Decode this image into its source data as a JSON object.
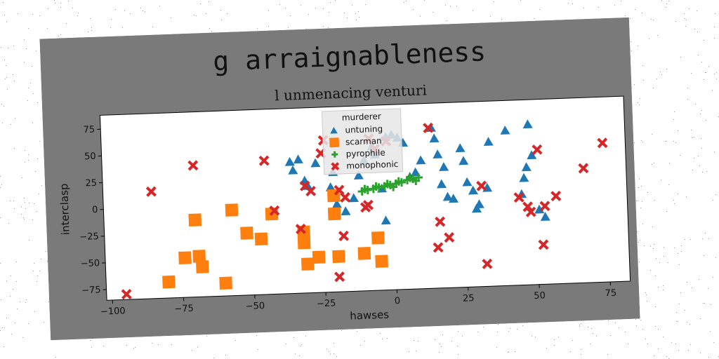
{
  "chart_data": {
    "type": "scatter",
    "title": "g arraignableness",
    "subtitle": "l unmenacing venturi",
    "xlabel": "hawses",
    "ylabel": "interclasp",
    "xlim": [
      -102,
      82
    ],
    "ylim": [
      -85,
      88
    ],
    "xticks": [
      -100,
      -75,
      -50,
      -25,
      0,
      25,
      50,
      75
    ],
    "xtick_labels": [
      "−100",
      "−75",
      "−50",
      "−25",
      "0",
      "25",
      "50",
      "75"
    ],
    "yticks": [
      -75,
      -50,
      -25,
      0,
      25,
      50,
      75
    ],
    "ytick_labels": [
      "−75",
      "−50",
      "−25",
      "0",
      "25",
      "50",
      "75"
    ],
    "grid": false,
    "legend": {
      "title": "murderer",
      "placement": "top-center"
    },
    "series": [
      {
        "name": "untuning",
        "marker": "triangle",
        "color": "#1f77b4",
        "points": [
          [
            -36,
            38
          ],
          [
            -33,
            40
          ],
          [
            -35,
            30
          ],
          [
            -31,
            20
          ],
          [
            -30,
            15
          ],
          [
            -27,
            36
          ],
          [
            -22,
            13
          ],
          [
            -21,
            27
          ],
          [
            -20,
            -3
          ],
          [
            -17,
            -10
          ],
          [
            -14,
            2
          ],
          [
            -12,
            23
          ],
          [
            -10,
            37
          ],
          [
            -7,
            50
          ],
          [
            -6,
            42
          ],
          [
            -4,
            10
          ],
          [
            -3,
            -20
          ],
          [
            -2,
            58
          ],
          [
            0,
            60
          ],
          [
            2,
            57
          ],
          [
            4,
            52
          ],
          [
            6,
            20
          ],
          [
            8,
            24
          ],
          [
            10,
            35
          ],
          [
            14,
            65
          ],
          [
            15,
            55
          ],
          [
            16,
            40
          ],
          [
            17,
            12
          ],
          [
            18,
            28
          ],
          [
            19,
            0
          ],
          [
            21,
            -2
          ],
          [
            24,
            45
          ],
          [
            25,
            33
          ],
          [
            26,
            13
          ],
          [
            28,
            5
          ],
          [
            29,
            -12
          ],
          [
            30,
            -8
          ],
          [
            33,
            7
          ],
          [
            34,
            50
          ],
          [
            40,
            60
          ],
          [
            45,
            0
          ],
          [
            46,
            15
          ],
          [
            47,
            25
          ],
          [
            48,
            65
          ],
          [
            49,
            36
          ],
          [
            51,
            -15
          ],
          [
            53,
            -22
          ]
        ]
      },
      {
        "name": "scarman",
        "marker": "square",
        "color": "#ff7f0e",
        "points": [
          [
            -80,
            -70
          ],
          [
            -74,
            -48
          ],
          [
            -69,
            -47
          ],
          [
            -70,
            -13
          ],
          [
            -68,
            -57
          ],
          [
            -60,
            -73
          ],
          [
            -57,
            -5
          ],
          [
            -52,
            -27
          ],
          [
            -47,
            -33
          ],
          [
            -43,
            -10
          ],
          [
            -32,
            -28
          ],
          [
            -32,
            -38
          ],
          [
            -31,
            -58
          ],
          [
            -27,
            -52
          ],
          [
            -21,
            5
          ],
          [
            -21,
            -12
          ],
          [
            -20,
            -52
          ],
          [
            -11,
            -50
          ],
          [
            -6,
            -36
          ],
          [
            -5,
            -58
          ]
        ]
      },
      {
        "name": "pyrophile",
        "marker": "plus",
        "color": "#2ca02c",
        "points": [
          [
            -11,
            8
          ],
          [
            -9,
            9
          ],
          [
            -7,
            10
          ],
          [
            -5,
            11
          ],
          [
            -3,
            12
          ],
          [
            -1,
            13
          ],
          [
            1,
            14
          ],
          [
            3,
            15
          ],
          [
            5,
            17
          ],
          [
            7,
            18
          ],
          [
            9,
            19
          ],
          [
            -10,
            10
          ],
          [
            -6,
            12
          ],
          [
            -2,
            14
          ],
          [
            2,
            16
          ],
          [
            6,
            19
          ],
          [
            8,
            16
          ],
          [
            0,
            11
          ]
        ]
      },
      {
        "name": "monophonic",
        "marker": "x",
        "color": "#d62728",
        "points": [
          [
            -95,
            -80
          ],
          [
            -85,
            15
          ],
          [
            -70,
            38
          ],
          [
            -45,
            40
          ],
          [
            -42,
            -7
          ],
          [
            -33,
            -25
          ],
          [
            -31,
            15
          ],
          [
            -29,
            10
          ],
          [
            -25,
            45
          ],
          [
            -24,
            57
          ],
          [
            -20,
            -71
          ],
          [
            -19,
            10
          ],
          [
            -18,
            -33
          ],
          [
            -17,
            3
          ],
          [
            -10,
            -7
          ],
          [
            -9,
            -5
          ],
          [
            -8,
            57
          ],
          [
            -6,
            47
          ],
          [
            -2,
            54
          ],
          [
            13,
            65
          ],
          [
            15,
            -47
          ],
          [
            16,
            -23
          ],
          [
            19,
            -38
          ],
          [
            31,
            9
          ],
          [
            32,
            -64
          ],
          [
            44,
            -3
          ],
          [
            47,
            -12
          ],
          [
            48,
            -17
          ],
          [
            51,
            41
          ],
          [
            52,
            -48
          ],
          [
            53,
            -12
          ],
          [
            57,
            -3
          ],
          [
            67,
            22
          ],
          [
            74,
            45
          ]
        ]
      }
    ]
  },
  "colors": {
    "figure_background": "#7a7a7a",
    "axes_background": "#ffffff",
    "untuning": "#1f77b4",
    "scarman": "#ff7f0e",
    "pyrophile": "#2ca02c",
    "monophonic": "#d62728"
  }
}
